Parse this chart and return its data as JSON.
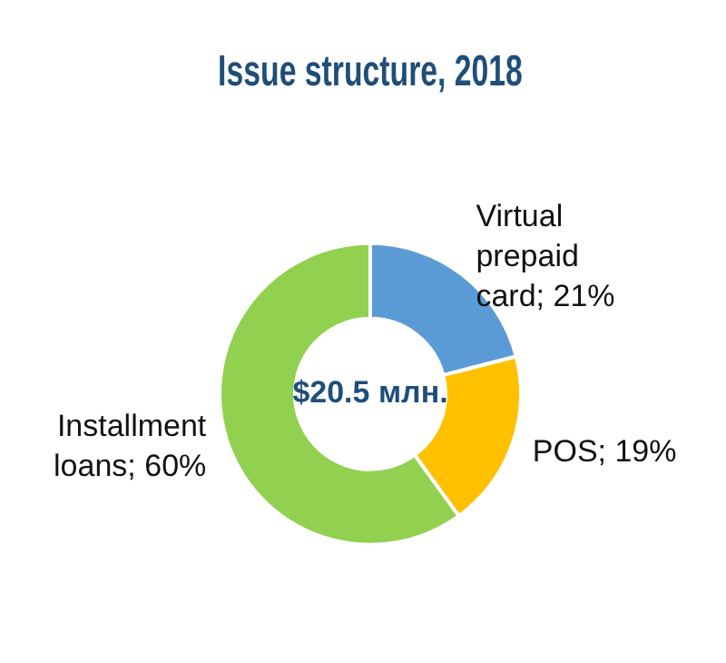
{
  "chart_data": {
    "type": "donut",
    "title": "Issue structure, 2018",
    "categories": [
      "Virtual prepaid card",
      "POS",
      "Installment loans"
    ],
    "value_labels": [
      "21%",
      "19%",
      "60%"
    ],
    "values": [
      21,
      19,
      60
    ],
    "colors": [
      "#5b9bd5",
      "#ffc000",
      "#92d050"
    ],
    "data_labels": true,
    "legend": false,
    "annotations": [
      "$20.5 млн."
    ]
  }
}
